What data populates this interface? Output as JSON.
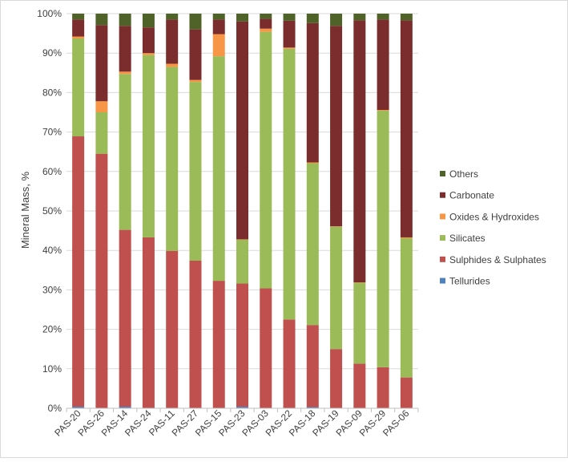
{
  "chart_data": {
    "type": "bar",
    "stacked": true,
    "normalized": true,
    "ylabel": "Mineral Mass, %",
    "ylim": [
      0,
      100
    ],
    "yticks": [
      "0%",
      "10%",
      "20%",
      "30%",
      "40%",
      "50%",
      "60%",
      "70%",
      "80%",
      "90%",
      "100%"
    ],
    "grid": true,
    "legend_position": "right",
    "categories": [
      "PAS-20",
      "PAS-26",
      "PAS-14",
      "PAS-24",
      "PAS-11",
      "PAS-27",
      "PAS-15",
      "PAS-23",
      "PAS-03",
      "PAS-22",
      "PAS-18",
      "PAS-19",
      "PAS-09",
      "PAS-29",
      "PAS-06"
    ],
    "series": [
      {
        "name": "Tellurides",
        "color": "#4f81bd",
        "values": [
          0.4,
          0.1,
          0.4,
          0.1,
          0.1,
          0.1,
          0.1,
          0.4,
          0.1,
          0.1,
          0.3,
          0.1,
          0.1,
          0.1,
          0.1
        ]
      },
      {
        "name": "Sulphides & Sulphates",
        "color": "#c0504d",
        "values": [
          68.5,
          64.4,
          44.8,
          43.2,
          39.8,
          37.3,
          32.2,
          31.2,
          30.3,
          22.4,
          20.8,
          14.9,
          11.2,
          10.3,
          7.7
        ]
      },
      {
        "name": "Silicates",
        "color": "#9bbb59",
        "values": [
          24.8,
          10.5,
          39.5,
          46.2,
          46.6,
          45.3,
          56.9,
          11.1,
          65.0,
          68.6,
          41.0,
          31.0,
          20.5,
          65.0,
          35.3
        ]
      },
      {
        "name": "Oxides & Hydroxides",
        "color": "#f79646",
        "values": [
          0.5,
          2.8,
          0.6,
          0.5,
          0.8,
          0.5,
          5.6,
          0.1,
          0.8,
          0.3,
          0.2,
          0.1,
          0.1,
          0.2,
          0.2
        ]
      },
      {
        "name": "Carbonate",
        "color": "#7b2c2c",
        "values": [
          4.3,
          19.3,
          11.6,
          6.5,
          11.2,
          12.8,
          3.7,
          55.2,
          2.5,
          6.8,
          35.3,
          50.8,
          66.4,
          22.9,
          55.0
        ]
      },
      {
        "name": "Others",
        "color": "#4f6228",
        "values": [
          1.5,
          2.9,
          3.1,
          3.5,
          1.5,
          4.0,
          1.5,
          2.0,
          1.3,
          1.8,
          2.4,
          3.1,
          1.7,
          1.5,
          1.7
        ]
      }
    ],
    "legend_order": [
      "Others",
      "Carbonate",
      "Oxides & Hydroxides",
      "Silicates",
      "Sulphides & Sulphates",
      "Tellurides"
    ]
  }
}
